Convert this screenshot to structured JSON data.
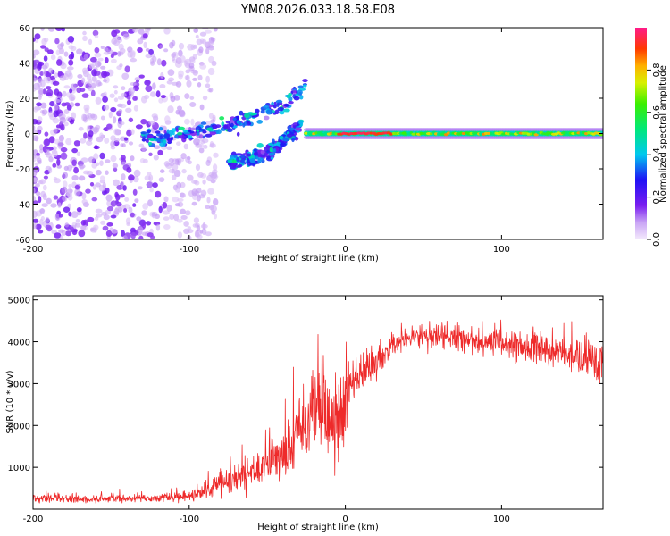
{
  "title": "YM08.2026.033.18.58.E08",
  "chart_data": [
    {
      "type": "heatmap",
      "name": "spectrogram",
      "xlabel": "Height of straight line (km)",
      "ylabel": "Frequency (Hz)",
      "xlim": [
        -200,
        165
      ],
      "ylim": [
        -60,
        60
      ],
      "xticks": [
        "-200",
        "-100",
        "0",
        "100"
      ],
      "yticks": [
        "60",
        "40",
        "20",
        "0",
        "-20",
        "-40",
        "-60"
      ],
      "xtick_values": [
        -200,
        -100,
        0,
        100
      ],
      "ytick_values": [
        60,
        40,
        20,
        0,
        -20,
        -40,
        -60
      ],
      "colorbar": {
        "label": "Normalized spectral amplitude",
        "range": [
          0,
          1
        ],
        "ticks": [
          "0.0",
          "0.2",
          "0.4",
          "0.6",
          "0.8"
        ],
        "tick_values": [
          0.0,
          0.2,
          0.4,
          0.6,
          0.8
        ]
      },
      "features": [
        {
          "name": "noise-region",
          "x_range": [
            -200,
            -95
          ],
          "y_range": [
            -60,
            60
          ],
          "amplitude": 0.15
        },
        {
          "name": "upper-branch",
          "x": [
            -130,
            -100,
            -80,
            -60,
            -40,
            -25
          ],
          "y": [
            -3,
            0,
            4,
            9,
            16,
            28
          ],
          "amplitude": 0.3
        },
        {
          "name": "lower-branch",
          "x": [
            -75,
            -60,
            -45,
            -35,
            -28
          ],
          "y": [
            -17,
            -14,
            -8,
            0,
            5
          ],
          "amplitude": 0.3
        },
        {
          "name": "carrier-line",
          "x_range": [
            -25,
            165
          ],
          "y": 0,
          "peak_x_range": [
            -5,
            30
          ],
          "amplitude": 0.95
        }
      ]
    },
    {
      "type": "line",
      "name": "snr",
      "xlabel": "Height of straight line (km)",
      "ylabel": "SNR (10 * v/v)",
      "xlim": [
        -200,
        165
      ],
      "ylim": [
        0,
        5100
      ],
      "xticks": [
        "-200",
        "-100",
        "0",
        "100"
      ],
      "yticks": [
        "5000",
        "4000",
        "3000",
        "2000",
        "1000"
      ],
      "xtick_values": [
        -200,
        -100,
        0,
        100
      ],
      "ytick_values": [
        5000,
        4000,
        3000,
        2000,
        1000
      ],
      "color": "#ee2a2a",
      "envelope": {
        "x": [
          -200,
          -150,
          -110,
          -95,
          -80,
          -70,
          -60,
          -50,
          -40,
          -30,
          -20,
          -12,
          -5,
          0,
          5,
          12,
          20,
          30,
          40,
          60,
          80,
          100,
          120,
          140,
          165
        ],
        "mean": [
          250,
          250,
          280,
          350,
          550,
          700,
          900,
          1050,
          1300,
          1800,
          2300,
          2300,
          2000,
          2500,
          3000,
          3300,
          3500,
          3900,
          4100,
          4150,
          4050,
          3950,
          3850,
          3700,
          3500
        ],
        "spread": [
          90,
          90,
          110,
          150,
          250,
          350,
          450,
          500,
          650,
          850,
          1100,
          1200,
          1000,
          800,
          500,
          400,
          350,
          250,
          230,
          280,
          320,
          330,
          350,
          380,
          450
        ]
      }
    }
  ]
}
